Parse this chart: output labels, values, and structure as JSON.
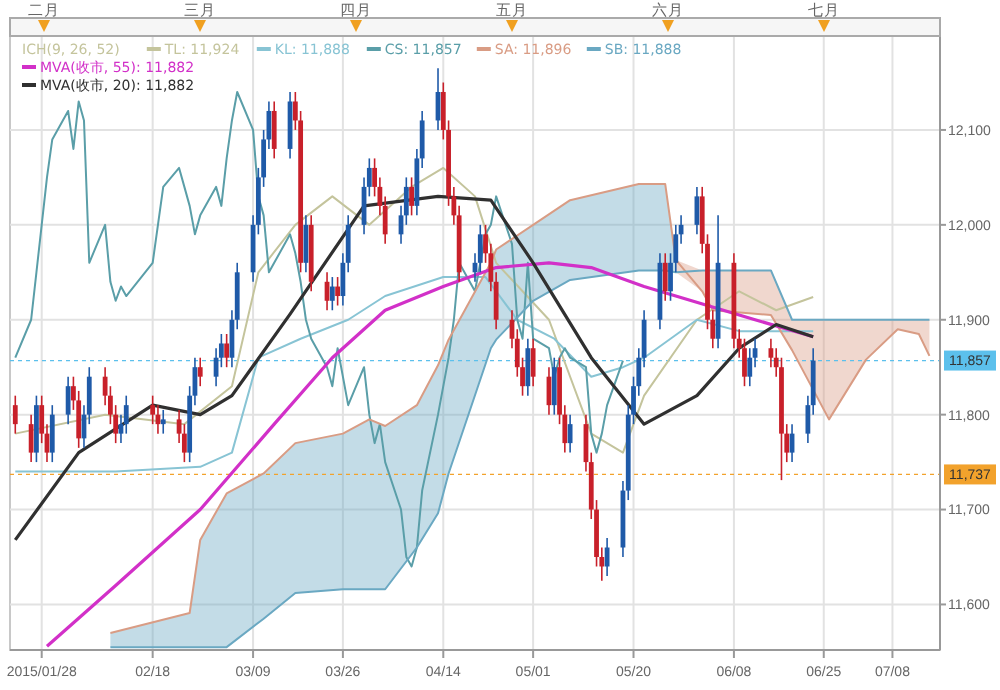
{
  "chart_data": {
    "type": "candlestick",
    "legend_title": "ICH(9, 26, 52)",
    "x": [
      "2015-01-23",
      "2015-01-26",
      "2015-01-27",
      "2015-01-28",
      "2015-01-29",
      "2015-01-30",
      "2015-02-02",
      "2015-02-03",
      "2015-02-04",
      "2015-02-05",
      "2015-02-06",
      "2015-02-09",
      "2015-02-10",
      "2015-02-11",
      "2015-02-12",
      "2015-02-13",
      "2015-02-18",
      "2015-02-19",
      "2015-02-20",
      "2015-02-23",
      "2015-02-24",
      "2015-02-25",
      "2015-02-26",
      "2015-02-27",
      "2015-03-02",
      "2015-03-03",
      "2015-03-04",
      "2015-03-05",
      "2015-03-06",
      "2015-03-09",
      "2015-03-10",
      "2015-03-11",
      "2015-03-12",
      "2015-03-13",
      "2015-03-16",
      "2015-03-17",
      "2015-03-18",
      "2015-03-19",
      "2015-03-20",
      "2015-03-23",
      "2015-03-24",
      "2015-03-25",
      "2015-03-26",
      "2015-03-27",
      "2015-03-30",
      "2015-03-31",
      "2015-04-01",
      "2015-04-02",
      "2015-04-03",
      "2015-04-06",
      "2015-04-07",
      "2015-04-08",
      "2015-04-09",
      "2015-04-10",
      "2015-04-13",
      "2015-04-14",
      "2015-04-15",
      "2015-04-16",
      "2015-04-17",
      "2015-04-20",
      "2015-04-21",
      "2015-04-22",
      "2015-04-23",
      "2015-04-24",
      "2015-04-27",
      "2015-04-28",
      "2015-04-29",
      "2015-04-30",
      "2015-05-01",
      "2015-05-04",
      "2015-05-05",
      "2015-05-06",
      "2015-05-07",
      "2015-05-08",
      "2015-05-11",
      "2015-05-12",
      "2015-05-13",
      "2015-05-14",
      "2015-05-15",
      "2015-05-18",
      "2015-05-19",
      "2015-05-20",
      "2015-05-21",
      "2015-05-22",
      "2015-05-25",
      "2015-05-26",
      "2015-05-27",
      "2015-05-28",
      "2015-05-29",
      "2015-06-01",
      "2015-06-02",
      "2015-06-03",
      "2015-06-04",
      "2015-06-05",
      "2015-06-08",
      "2015-06-09",
      "2015-06-10",
      "2015-06-11",
      "2015-06-12",
      "2015-06-15",
      "2015-06-16",
      "2015-06-17",
      "2015-06-18",
      "2015-06-19",
      "2015-06-22",
      "2015-06-23"
    ],
    "ohlc": [
      [
        11810,
        11820,
        11780,
        11790
      ],
      [
        11790,
        11800,
        11750,
        11760
      ],
      [
        11760,
        11820,
        11750,
        11810
      ],
      [
        11810,
        11820,
        11770,
        11780
      ],
      [
        11780,
        11790,
        11750,
        11760
      ],
      [
        11760,
        11810,
        11750,
        11800
      ],
      [
        11800,
        11840,
        11790,
        11830
      ],
      [
        11830,
        11840,
        11805,
        11815
      ],
      [
        11815,
        11825,
        11765,
        11775
      ],
      [
        11775,
        11810,
        11765,
        11800
      ],
      [
        11800,
        11850,
        11790,
        11840
      ],
      [
        11840,
        11850,
        11810,
        11820
      ],
      [
        11820,
        11830,
        11790,
        11800
      ],
      [
        11800,
        11810,
        11770,
        11780
      ],
      [
        11780,
        11800,
        11770,
        11790
      ],
      [
        11790,
        11820,
        11780,
        11810
      ],
      [
        11810,
        11820,
        11790,
        11800
      ],
      [
        11800,
        11810,
        11780,
        11790
      ],
      [
        11790,
        11805,
        11780,
        11795
      ],
      [
        11795,
        11805,
        11770,
        11780
      ],
      [
        11780,
        11790,
        11750,
        11760
      ],
      [
        11760,
        11830,
        11750,
        11820
      ],
      [
        11820,
        11860,
        11810,
        11850
      ],
      [
        11850,
        11860,
        11830,
        11840
      ],
      [
        11840,
        11870,
        11830,
        11860
      ],
      [
        11860,
        11885,
        11850,
        11875
      ],
      [
        11875,
        11885,
        11850,
        11860
      ],
      [
        11860,
        11910,
        11850,
        11900
      ],
      [
        11900,
        11960,
        11890,
        11950
      ],
      [
        11950,
        12010,
        11940,
        12000
      ],
      [
        12000,
        12060,
        11990,
        12050
      ],
      [
        12050,
        12100,
        12040,
        12090
      ],
      [
        12090,
        12130,
        12080,
        12120
      ],
      [
        12120,
        12130,
        12070,
        12080
      ],
      [
        12080,
        12140,
        12070,
        12130
      ],
      [
        12130,
        12140,
        12100,
        12110
      ],
      [
        12110,
        12120,
        11950,
        11960
      ],
      [
        11960,
        12010,
        11950,
        12000
      ],
      [
        12000,
        12010,
        11930,
        11940
      ],
      [
        11940,
        11950,
        11910,
        11920
      ],
      [
        11920,
        11945,
        11910,
        11935
      ],
      [
        11935,
        11945,
        11915,
        11925
      ],
      [
        11925,
        11970,
        11915,
        11960
      ],
      [
        11960,
        12010,
        11950,
        12000
      ],
      [
        12000,
        12050,
        11990,
        12040
      ],
      [
        12040,
        12070,
        12030,
        12060
      ],
      [
        12060,
        12070,
        12030,
        12040
      ],
      [
        12040,
        12050,
        12010,
        12020
      ],
      [
        12020,
        12030,
        11980,
        11990
      ],
      [
        11990,
        12020,
        11980,
        12010
      ],
      [
        12010,
        12050,
        12000,
        12040
      ],
      [
        12040,
        12050,
        12010,
        12020
      ],
      [
        12020,
        12080,
        12010,
        12070
      ],
      [
        12070,
        12120,
        12060,
        12110
      ],
      [
        12110,
        12165,
        12100,
        12140
      ],
      [
        12140,
        12150,
        12090,
        12100
      ],
      [
        12100,
        12110,
        12020,
        12030
      ],
      [
        12030,
        12040,
        12000,
        12010
      ],
      [
        12010,
        12020,
        11940,
        11950
      ],
      [
        11950,
        11970,
        11940,
        11960
      ],
      [
        11960,
        12000,
        11950,
        11990
      ],
      [
        11990,
        12000,
        11960,
        11970
      ],
      [
        11970,
        11980,
        11930,
        11940
      ],
      [
        11940,
        11950,
        11890,
        11900
      ],
      [
        11900,
        11910,
        11870,
        11880
      ],
      [
        11880,
        11890,
        11840,
        11850
      ],
      [
        11850,
        11860,
        11820,
        11830
      ],
      [
        11830,
        11880,
        11820,
        11870
      ],
      [
        11870,
        11880,
        11830,
        11840
      ],
      [
        11840,
        11850,
        11800,
        11810
      ],
      [
        11810,
        11860,
        11800,
        11850
      ],
      [
        11850,
        11860,
        11790,
        11800
      ],
      [
        11800,
        11810,
        11760,
        11770
      ],
      [
        11770,
        11800,
        11760,
        11790
      ],
      [
        11790,
        11800,
        11740,
        11750
      ],
      [
        11750,
        11760,
        11690,
        11700
      ],
      [
        11700,
        11710,
        11640,
        11650
      ],
      [
        11650,
        11660,
        11625,
        11640
      ],
      [
        11640,
        11670,
        11630,
        11660
      ],
      [
        11660,
        11730,
        11650,
        11720
      ],
      [
        11720,
        11810,
        11710,
        11800
      ],
      [
        11800,
        11840,
        11790,
        11830
      ],
      [
        11830,
        11870,
        11820,
        11860
      ],
      [
        11860,
        11910,
        11850,
        11900
      ],
      [
        11900,
        11970,
        11890,
        11960
      ],
      [
        11960,
        11970,
        11920,
        11930
      ],
      [
        11930,
        11970,
        11920,
        11960
      ],
      [
        11960,
        12000,
        11950,
        11990
      ],
      [
        11990,
        12010,
        11980,
        12000
      ],
      [
        12000,
        12040,
        11990,
        12030
      ],
      [
        12030,
        12040,
        11970,
        11980
      ],
      [
        11980,
        11990,
        11890,
        11900
      ],
      [
        11900,
        11910,
        11870,
        11880
      ],
      [
        11880,
        12010,
        11870,
        11960
      ],
      [
        11960,
        11970,
        11870,
        11880
      ],
      [
        11880,
        11890,
        11860,
        11870
      ],
      [
        11870,
        11880,
        11830,
        11840
      ],
      [
        11840,
        11870,
        11830,
        11860
      ],
      [
        11860,
        11880,
        11850,
        11870
      ],
      [
        11870,
        11880,
        11850,
        11860
      ],
      [
        11860,
        11870,
        11840,
        11850
      ],
      [
        11850,
        11860,
        11731,
        11780
      ],
      [
        11780,
        11790,
        11750,
        11760
      ],
      [
        11760,
        11790,
        11750,
        11780
      ],
      [
        11780,
        11820,
        11770,
        11810
      ],
      [
        11810,
        11870,
        11800,
        11857
      ]
    ],
    "colors": [
      "#c8202a",
      "#c8202a",
      "#1f5aa8",
      "#c8202a",
      "#c8202a",
      "#1f5aa8",
      "#1f5aa8",
      "#c8202a",
      "#c8202a",
      "#1f5aa8",
      "#1f5aa8",
      "#c8202a",
      "#c8202a",
      "#c8202a",
      "#1f5aa8",
      "#1f5aa8",
      "#c8202a",
      "#c8202a",
      "#1f5aa8",
      "#c8202a",
      "#c8202a",
      "#1f5aa8",
      "#1f5aa8",
      "#c8202a",
      "#1f5aa8",
      "#1f5aa8",
      "#c8202a",
      "#1f5aa8",
      "#1f5aa8",
      "#1f5aa8",
      "#1f5aa8",
      "#1f5aa8",
      "#1f5aa8",
      "#c8202a",
      "#1f5aa8",
      "#c8202a",
      "#c8202a",
      "#1f5aa8",
      "#c8202a",
      "#c8202a",
      "#1f5aa8",
      "#c8202a",
      "#1f5aa8",
      "#1f5aa8",
      "#1f5aa8",
      "#1f5aa8",
      "#c8202a",
      "#c8202a",
      "#c8202a",
      "#1f5aa8",
      "#1f5aa8",
      "#c8202a",
      "#1f5aa8",
      "#1f5aa8",
      "#1f5aa8",
      "#c8202a",
      "#c8202a",
      "#c8202a",
      "#c8202a",
      "#1f5aa8",
      "#1f5aa8",
      "#c8202a",
      "#c8202a",
      "#c8202a",
      "#c8202a",
      "#c8202a",
      "#c8202a",
      "#1f5aa8",
      "#c8202a",
      "#c8202a",
      "#1f5aa8",
      "#c8202a",
      "#c8202a",
      "#1f5aa8",
      "#c8202a",
      "#c8202a",
      "#c8202a",
      "#c8202a",
      "#1f5aa8",
      "#1f5aa8",
      "#1f5aa8",
      "#1f5aa8",
      "#1f5aa8",
      "#1f5aa8",
      "#1f5aa8",
      "#c8202a",
      "#1f5aa8",
      "#1f5aa8",
      "#1f5aa8",
      "#1f5aa8",
      "#c8202a",
      "#c8202a",
      "#c8202a",
      "#1f5aa8",
      "#c8202a",
      "#c8202a",
      "#c8202a",
      "#1f5aa8",
      "#1f5aa8",
      "#c8202a",
      "#c8202a",
      "#c8202a",
      "#c8202a",
      "#1f5aa8",
      "#1f5aa8",
      "#1f5aa8"
    ],
    "series": [
      {
        "name": "TL: 11,924",
        "type": "line",
        "color": "#c4c49c",
        "x": [
          "2015-01-23",
          "2015-02-09",
          "2015-02-24",
          "2015-03-05",
          "2015-03-10",
          "2015-03-17",
          "2015-03-24",
          "2015-03-31",
          "2015-04-08",
          "2015-04-14",
          "2015-04-20",
          "2015-04-24",
          "2015-05-04",
          "2015-05-12",
          "2015-05-18",
          "2015-05-22",
          "2015-06-01",
          "2015-06-09",
          "2015-06-16",
          "2015-06-23"
        ],
        "values": [
          11780,
          11800,
          11790,
          11830,
          11950,
          12000,
          12030,
          12000,
          12040,
          12060,
          12030,
          11960,
          11900,
          11780,
          11760,
          11820,
          11900,
          11930,
          11910,
          11924
        ]
      },
      {
        "name": "KL: 11,888",
        "type": "line",
        "color": "#88c4d4",
        "x": [
          "2015-01-23",
          "2015-02-11",
          "2015-02-27",
          "2015-03-05",
          "2015-03-10",
          "2015-03-18",
          "2015-03-27",
          "2015-04-03",
          "2015-04-14",
          "2015-04-22",
          "2015-04-28",
          "2015-05-05",
          "2015-05-12",
          "2015-05-18",
          "2015-05-22",
          "2015-06-01",
          "2015-06-09",
          "2015-06-23"
        ],
        "values": [
          11740,
          11740,
          11745,
          11760,
          11860,
          11880,
          11900,
          11925,
          11945,
          11945,
          11900,
          11880,
          11840,
          11850,
          11860,
          11900,
          11888,
          11888
        ]
      },
      {
        "name": "CS: 11,857",
        "type": "line",
        "color": "#5a9ea8",
        "x": [
          "2015-01-23",
          "2015-01-26",
          "2015-01-27",
          "2015-01-28",
          "2015-01-29",
          "2015-01-30",
          "2015-02-02",
          "2015-02-03",
          "2015-02-04",
          "2015-02-05",
          "2015-02-06",
          "2015-02-09",
          "2015-02-10",
          "2015-02-11",
          "2015-02-12",
          "2015-02-13",
          "2015-02-18",
          "2015-02-19",
          "2015-02-20",
          "2015-02-23",
          "2015-02-24",
          "2015-02-25",
          "2015-02-26",
          "2015-02-27",
          "2015-03-02",
          "2015-03-03",
          "2015-03-04",
          "2015-03-05",
          "2015-03-06",
          "2015-03-09",
          "2015-03-10",
          "2015-03-11",
          "2015-03-12",
          "2015-03-13",
          "2015-03-16",
          "2015-03-17",
          "2015-03-18",
          "2015-03-19",
          "2015-03-20",
          "2015-03-23",
          "2015-03-24",
          "2015-03-25",
          "2015-03-26",
          "2015-03-27",
          "2015-03-30",
          "2015-03-31",
          "2015-04-01",
          "2015-04-02",
          "2015-04-03",
          "2015-04-06",
          "2015-04-07",
          "2015-04-08",
          "2015-04-09",
          "2015-04-10",
          "2015-04-13",
          "2015-04-14",
          "2015-04-15",
          "2015-04-16",
          "2015-04-17",
          "2015-04-20",
          "2015-04-21",
          "2015-04-22",
          "2015-04-23",
          "2015-04-24",
          "2015-04-27",
          "2015-04-28",
          "2015-04-29",
          "2015-04-30",
          "2015-05-01",
          "2015-05-04",
          "2015-05-05",
          "2015-05-06",
          "2015-05-07",
          "2015-05-08",
          "2015-05-11",
          "2015-05-12",
          "2015-05-13",
          "2015-05-14",
          "2015-05-15",
          "2015-05-18"
        ],
        "values": [
          11860,
          11900,
          11950,
          12000,
          12050,
          12090,
          12120,
          12080,
          12130,
          12110,
          11960,
          12000,
          11940,
          11920,
          11935,
          11925,
          11960,
          12000,
          12040,
          12060,
          12040,
          12020,
          11990,
          12010,
          12040,
          12020,
          12070,
          12110,
          12140,
          12100,
          12030,
          12010,
          11950,
          11960,
          11990,
          11970,
          11940,
          11900,
          11880,
          11850,
          11830,
          11870,
          11840,
          11810,
          11850,
          11800,
          11770,
          11790,
          11750,
          11700,
          11650,
          11640,
          11660,
          11720,
          11800,
          11830,
          11860,
          11900,
          11960,
          11930,
          11960,
          11990,
          12000,
          12030,
          11980,
          11900,
          11880,
          11960,
          11880,
          11870,
          11840,
          11860,
          11870,
          11860,
          11850,
          11780,
          11760,
          11780,
          11810,
          11857
        ]
      },
      {
        "name": "SA: 11,896",
        "type": "line",
        "color": "#d99c84",
        "x": [
          "2015-02-10",
          "2015-02-25",
          "2015-02-27",
          "2015-03-04",
          "2015-03-11",
          "2015-03-17",
          "2015-03-26",
          "2015-03-31",
          "2015-04-03",
          "2015-04-09",
          "2015-04-13",
          "2015-04-15",
          "2015-04-23",
          "2015-04-24",
          "2015-05-01",
          "2015-05-08",
          "2015-05-21",
          "2015-05-26",
          "2015-05-28",
          "2015-06-02",
          "2015-06-04",
          "2015-06-15",
          "2015-06-19",
          "2015-06-26",
          "2015-07-03",
          "2015-07-09",
          "2015-07-13",
          "2015-07-15"
        ],
        "values": [
          11570,
          11591,
          11668,
          11717,
          11738,
          11770,
          11780,
          11795,
          11788,
          11810,
          11852,
          11879,
          11960,
          11974,
          12000,
          12026,
          12043,
          12043,
          11963,
          11930,
          11910,
          11905,
          11868,
          11795,
          11858,
          11890,
          11885,
          11862
        ],
        "lower": [
          null,
          null,
          null,
          null,
          null,
          null,
          null,
          null,
          null,
          null,
          null,
          null,
          null,
          null,
          null,
          null,
          null,
          null,
          11950,
          11930,
          11910,
          11905,
          11868,
          11795,
          11858,
          11890,
          11885,
          11862
        ],
        "upper": [
          null,
          null,
          null,
          null,
          null,
          null,
          null,
          null,
          null,
          null,
          null,
          null,
          null,
          null,
          null,
          null,
          null,
          null,
          11963,
          11952,
          11952,
          11952,
          11900,
          11900,
          11900,
          11900,
          11900,
          11900
        ]
      },
      {
        "name": "SB: 11,888",
        "type": "line",
        "color": "#6aa8c2",
        "x": [
          "2015-02-10",
          "2015-02-25",
          "2015-02-27",
          "2015-03-04",
          "2015-03-11",
          "2015-03-17",
          "2015-03-26",
          "2015-03-31",
          "2015-04-03",
          "2015-04-09",
          "2015-04-13",
          "2015-04-15",
          "2015-04-23",
          "2015-04-24",
          "2015-05-01",
          "2015-05-08",
          "2015-05-21",
          "2015-05-26",
          "2015-05-28",
          "2015-06-02",
          "2015-06-04",
          "2015-06-15",
          "2015-06-19",
          "2015-06-26",
          "2015-07-03",
          "2015-07-09",
          "2015-07-13",
          "2015-07-15"
        ],
        "values": [
          11555,
          11555,
          11555,
          11555,
          11585,
          11612,
          11616,
          11616,
          11616,
          11660,
          11696,
          11738,
          11870,
          11879,
          11920,
          11942,
          11952,
          11952,
          11950,
          11952,
          11952,
          11952,
          11900,
          11900,
          11900,
          11900,
          11900,
          11900
        ],
        "lower": [
          11555,
          11555,
          11555,
          11555,
          11585,
          11612,
          11616,
          11616,
          11616,
          11660,
          11696,
          11738,
          11870,
          11879,
          11920,
          11942,
          11952,
          11952,
          11950,
          null,
          null,
          null,
          null,
          null,
          null,
          null,
          null,
          null
        ],
        "upper": [
          11570,
          11591,
          11668,
          11717,
          11738,
          11770,
          11780,
          11795,
          11788,
          11810,
          11852,
          11879,
          11960,
          11974,
          12000,
          12026,
          12043,
          12043,
          11963,
          null,
          null,
          null,
          null,
          null,
          null,
          null,
          null,
          null
        ]
      },
      {
        "name": "MVA(收市, 55): 11,882",
        "type": "line",
        "color": "#d230c8",
        "x": [
          "2015-01-29",
          "2015-02-11",
          "2015-02-27",
          "2015-03-13",
          "2015-03-24",
          "2015-04-03",
          "2015-04-14",
          "2015-04-24",
          "2015-05-04",
          "2015-05-12",
          "2015-05-22",
          "2015-06-03",
          "2015-06-12",
          "2015-06-23"
        ],
        "values": [
          11556,
          11620,
          11700,
          11790,
          11860,
          11910,
          11935,
          11955,
          11960,
          11955,
          11935,
          11915,
          11900,
          11882
        ]
      },
      {
        "name": "MVA(收市, 20): 11,882",
        "type": "line",
        "color": "#303030",
        "x": [
          "2015-01-23",
          "2015-02-04",
          "2015-02-18",
          "2015-02-27",
          "2015-03-05",
          "2015-03-16",
          "2015-03-30",
          "2015-04-13",
          "2015-04-23",
          "2015-05-01",
          "2015-05-12",
          "2015-05-22",
          "2015-06-01",
          "2015-06-09",
          "2015-06-16",
          "2015-06-23"
        ],
        "values": [
          11668,
          11760,
          11810,
          11800,
          11820,
          11906,
          12020,
          12030,
          12026,
          11960,
          11860,
          11790,
          11820,
          11870,
          11895,
          11882
        ]
      }
    ],
    "xlim": [
      "2015-01-22",
      "2015-07-17"
    ],
    "xticks": [
      {
        "value": "2015-01-28",
        "label": "2015/01/28"
      },
      {
        "value": "2015-02-18",
        "label": "02/18"
      },
      {
        "value": "2015-03-09",
        "label": "03/09"
      },
      {
        "value": "2015-03-26",
        "label": "03/26"
      },
      {
        "value": "2015-04-14",
        "label": "04/14"
      },
      {
        "value": "2015-05-01",
        "label": "05/01"
      },
      {
        "value": "2015-05-20",
        "label": "05/20"
      },
      {
        "value": "2015-06-08",
        "label": "06/08"
      },
      {
        "value": "2015-06-25",
        "label": "06/25"
      },
      {
        "value": "2015-07-08",
        "label": "07/08"
      }
    ],
    "annotations": [
      "二月",
      "三月",
      "四月",
      "五月",
      "六月",
      "七月"
    ],
    "ylim": [
      11552,
      12199
    ],
    "yticks": [
      {
        "value": 11600,
        "label": "11,600"
      },
      {
        "value": 11700,
        "label": "11,700"
      },
      {
        "value": 11800,
        "label": "11,800"
      },
      {
        "value": 11900,
        "label": "11,900"
      },
      {
        "value": 12000,
        "label": "12,000"
      },
      {
        "value": 12100,
        "label": "12,100"
      }
    ],
    "ref_lines": [
      {
        "axis": "y",
        "value": 11857,
        "label": "11,857",
        "color": "#5cc0ec"
      },
      {
        "axis": "y",
        "value": 11737,
        "label": "11,737",
        "color": "#f2a22c"
      }
    ],
    "grid": true,
    "legend": "top left"
  }
}
